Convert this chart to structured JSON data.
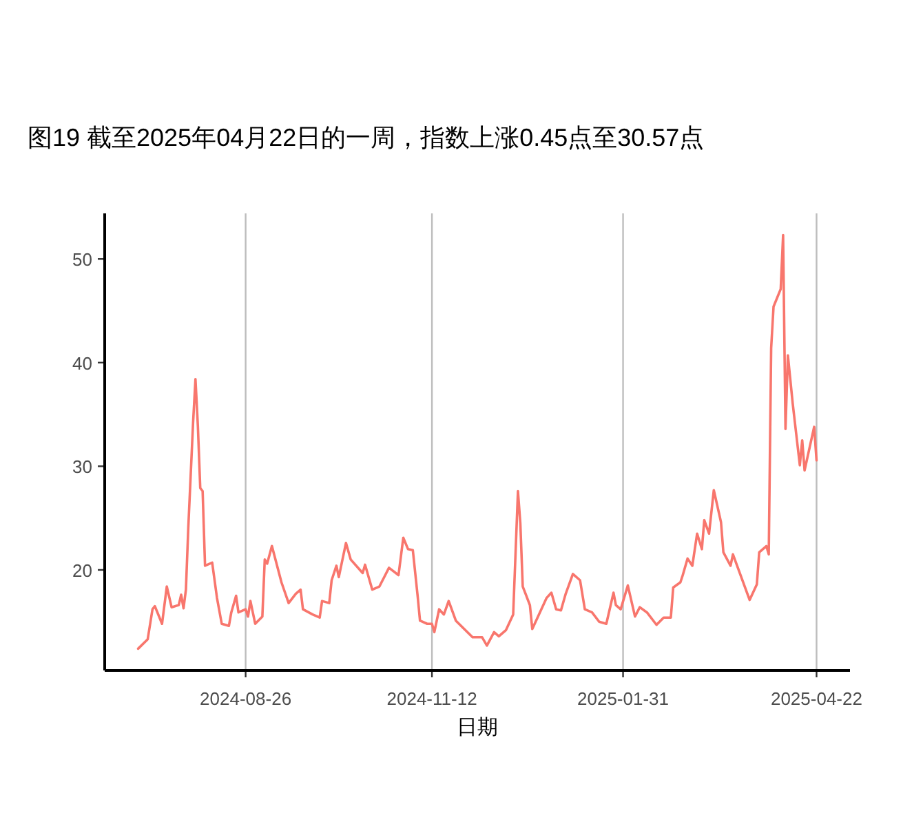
{
  "chart_data": {
    "type": "line",
    "title": "图19  截至2025年04月22日的一周，指数上涨0.45点至30.57点",
    "xlabel": "日期",
    "x": [
      "2024-07-12",
      "2024-07-16",
      "2024-07-18",
      "2024-07-19",
      "2024-07-22",
      "2024-07-24",
      "2024-07-26",
      "2024-07-29",
      "2024-07-30",
      "2024-07-31",
      "2024-08-01",
      "2024-08-02",
      "2024-08-04",
      "2024-08-05",
      "2024-08-06",
      "2024-08-07",
      "2024-08-08",
      "2024-08-09",
      "2024-08-12",
      "2024-08-14",
      "2024-08-16",
      "2024-08-19",
      "2024-08-20",
      "2024-08-22",
      "2024-08-23",
      "2024-08-26",
      "2024-08-27",
      "2024-08-28",
      "2024-08-30",
      "2024-09-02",
      "2024-09-03",
      "2024-09-04",
      "2024-09-06",
      "2024-09-10",
      "2024-09-13",
      "2024-09-16",
      "2024-09-18",
      "2024-09-19",
      "2024-09-23",
      "2024-09-26",
      "2024-09-27",
      "2024-09-30",
      "2024-10-01",
      "2024-10-03",
      "2024-10-04",
      "2024-10-07",
      "2024-10-09",
      "2024-10-14",
      "2024-10-15",
      "2024-10-18",
      "2024-10-21",
      "2024-10-23",
      "2024-10-25",
      "2024-10-29",
      "2024-10-31",
      "2024-11-02",
      "2024-11-04",
      "2024-11-06",
      "2024-11-07",
      "2024-11-10",
      "2024-11-12",
      "2024-11-13",
      "2024-11-15",
      "2024-11-17",
      "2024-11-19",
      "2024-11-22",
      "2024-11-29",
      "2024-12-03",
      "2024-12-05",
      "2024-12-08",
      "2024-12-10",
      "2024-12-13",
      "2024-12-16",
      "2024-12-18",
      "2024-12-19",
      "2024-12-20",
      "2024-12-23",
      "2024-12-24",
      "2024-12-26",
      "2024-12-30",
      "2025-01-01",
      "2025-01-03",
      "2025-01-05",
      "2025-01-07",
      "2025-01-10",
      "2025-01-13",
      "2025-01-15",
      "2025-01-18",
      "2025-01-21",
      "2025-01-24",
      "2025-01-27",
      "2025-01-28",
      "2025-01-30",
      "2025-02-02",
      "2025-02-05",
      "2025-02-07",
      "2025-02-10",
      "2025-02-14",
      "2025-02-17",
      "2025-02-20",
      "2025-02-21",
      "2025-02-24",
      "2025-02-25",
      "2025-02-27",
      "2025-03-01",
      "2025-03-03",
      "2025-03-05",
      "2025-03-06",
      "2025-03-08",
      "2025-03-10",
      "2025-03-13",
      "2025-03-14",
      "2025-03-17",
      "2025-03-18",
      "2025-03-25",
      "2025-03-28",
      "2025-03-29",
      "2025-04-01",
      "2025-04-02",
      "2025-04-03",
      "2025-04-04",
      "2025-04-07",
      "2025-04-08",
      "2025-04-09",
      "2025-04-10",
      "2025-04-12",
      "2025-04-15",
      "2025-04-16",
      "2025-04-17",
      "2025-04-21",
      "2025-04-22"
    ],
    "series": [
      {
        "color": "#f8766d",
        "values": [
          12.4,
          13.3,
          16.2,
          16.5,
          14.8,
          18.4,
          16.4,
          16.6,
          17.6,
          16.3,
          18.1,
          24.1,
          34.2,
          38.4,
          33.9,
          27.9,
          27.6,
          20.4,
          20.7,
          17.3,
          14.8,
          14.6,
          15.9,
          17.5,
          15.9,
          16.2,
          15.5,
          17.0,
          14.8,
          15.5,
          21.0,
          20.6,
          22.3,
          18.8,
          16.8,
          17.7,
          18.1,
          16.2,
          15.7,
          15.4,
          17.0,
          16.8,
          19.0,
          20.4,
          19.3,
          22.6,
          21.0,
          19.7,
          20.5,
          18.1,
          18.4,
          19.3,
          20.2,
          19.5,
          23.1,
          22.0,
          21.9,
          17.5,
          15.1,
          14.8,
          14.8,
          14.0,
          16.2,
          15.7,
          17.0,
          15.1,
          13.5,
          13.5,
          12.7,
          14.0,
          13.6,
          14.2,
          15.7,
          27.6,
          24.5,
          18.4,
          16.6,
          14.3,
          15.3,
          17.3,
          17.8,
          16.2,
          16.1,
          17.7,
          19.6,
          19.0,
          16.2,
          15.9,
          15.0,
          14.8,
          17.8,
          16.6,
          16.2,
          18.5,
          15.5,
          16.4,
          15.9,
          14.7,
          15.4,
          15.4,
          18.3,
          18.8,
          19.5,
          21.1,
          20.4,
          23.5,
          22.0,
          24.8,
          23.5,
          27.7,
          24.6,
          21.7,
          20.4,
          21.5,
          17.1,
          18.6,
          21.7,
          22.3,
          21.5,
          41.4,
          45.4,
          47.1,
          52.3,
          33.6,
          40.7,
          36.1,
          30.1,
          32.5,
          29.6,
          33.8,
          30.57
        ]
      }
    ],
    "xlim": [
      "2024-06-28",
      "2025-05-06"
    ],
    "xticks": [
      "2024-08-26",
      "2024-11-12",
      "2025-01-31",
      "2025-04-22"
    ],
    "ylim": [
      10.3,
      54.4
    ],
    "yticks": [
      20,
      30,
      40,
      50
    ],
    "grid": "x"
  }
}
